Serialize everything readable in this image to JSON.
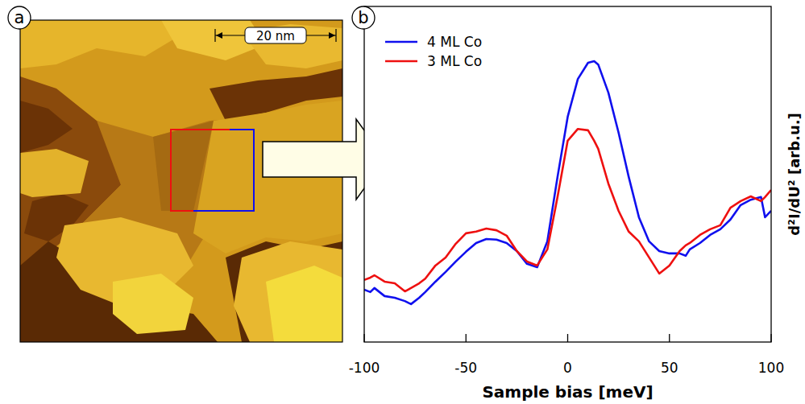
{
  "image": {
    "panel_label": "a",
    "scale_bar": "20 nm"
  },
  "chart_data": {
    "type": "line",
    "panel_label": "b",
    "x_label": "Sample bias [meV]",
    "y_label": "d²I/dU² [arb.u.]",
    "x": [
      -100,
      -97,
      -95,
      -90,
      -85,
      -80,
      -77,
      -73,
      -70,
      -65,
      -60,
      -55,
      -50,
      -45,
      -40,
      -35,
      -30,
      -25,
      -20,
      -15,
      -10,
      -5,
      0,
      5,
      10,
      13,
      15,
      20,
      25,
      30,
      35,
      40,
      45,
      50,
      55,
      58,
      60,
      65,
      70,
      75,
      80,
      85,
      90,
      95,
      97,
      100
    ],
    "series": [
      {
        "name": "4 ML Co",
        "color": "#1010ee",
        "values": [
          15.6,
          14.9,
          16.1,
          13.7,
          13.2,
          12.2,
          11.3,
          13.2,
          14.9,
          18.0,
          20.9,
          24.0,
          26.9,
          29.5,
          30.7,
          30.5,
          29.5,
          27.1,
          23.3,
          22.3,
          30.0,
          49.2,
          67.1,
          78.4,
          83.2,
          83.7,
          82.7,
          74.3,
          62.4,
          49.2,
          37.2,
          30.0,
          27.1,
          26.4,
          26.4,
          25.7,
          27.6,
          29.5,
          31.9,
          33.6,
          36.5,
          40.8,
          42.4,
          43.2,
          37.2,
          39.1
        ]
      },
      {
        "name": "3 ML Co",
        "color": "#ee1010",
        "values": [
          18.5,
          19.2,
          19.9,
          18.0,
          17.5,
          15.1,
          16.1,
          17.5,
          18.9,
          22.8,
          25.2,
          29.3,
          32.4,
          32.9,
          33.8,
          33.3,
          31.7,
          27.1,
          24.0,
          22.8,
          27.6,
          43.2,
          60.0,
          63.5,
          63.1,
          60.0,
          57.6,
          47.2,
          39.1,
          32.9,
          30.0,
          25.2,
          20.4,
          22.8,
          27.1,
          28.8,
          29.5,
          31.9,
          33.6,
          34.8,
          40.0,
          42.0,
          43.4,
          42.0,
          43.2,
          45.3
        ]
      }
    ],
    "xlim": [
      -100,
      100
    ],
    "xticks": [
      -100,
      -50,
      0,
      50,
      100
    ],
    "ylim": [
      0,
      100
    ],
    "tick_labels": "x",
    "legend": "upper left",
    "grid": false
  }
}
